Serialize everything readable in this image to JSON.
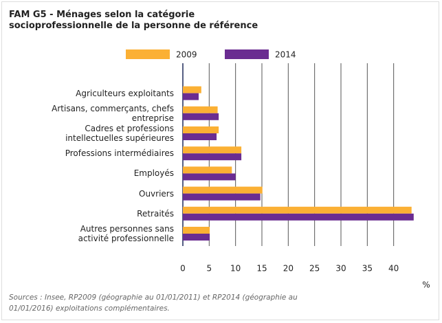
{
  "chart_data": {
    "type": "bar",
    "orientation": "horizontal",
    "title": "FAM G5 - Ménages selon la catégorie socioprofessionnelle de la personne de référence",
    "categories": [
      "Agriculteurs exploitants",
      "Artisans, commerçants, chefs\nentreprise",
      "Cadres et professions\nintellectuelles supérieures",
      "Professions intermédiaires",
      "Employés",
      "Ouvriers",
      "Retraités",
      "Autres personnes sans\nactivité professionnelle"
    ],
    "series": [
      {
        "name": "2009",
        "color": "#fbb034",
        "values": [
          3.5,
          6.6,
          6.8,
          11.1,
          9.3,
          15.1,
          43.4,
          5.1
        ]
      },
      {
        "name": "2014",
        "color": "#6a2c91",
        "values": [
          3.0,
          6.8,
          6.4,
          11.1,
          10.0,
          14.7,
          43.8,
          5.1
        ]
      }
    ],
    "xlim": [
      0,
      45
    ],
    "xticks": [
      0,
      5,
      10,
      15,
      20,
      25,
      30,
      35,
      40
    ],
    "grid": true,
    "x_unit": "%",
    "source": "Sources : Insee, RP2009 (géographie au 01/01/2011) et RP2014 (géographie au 01/01/2016) exploitations complémentaires."
  }
}
